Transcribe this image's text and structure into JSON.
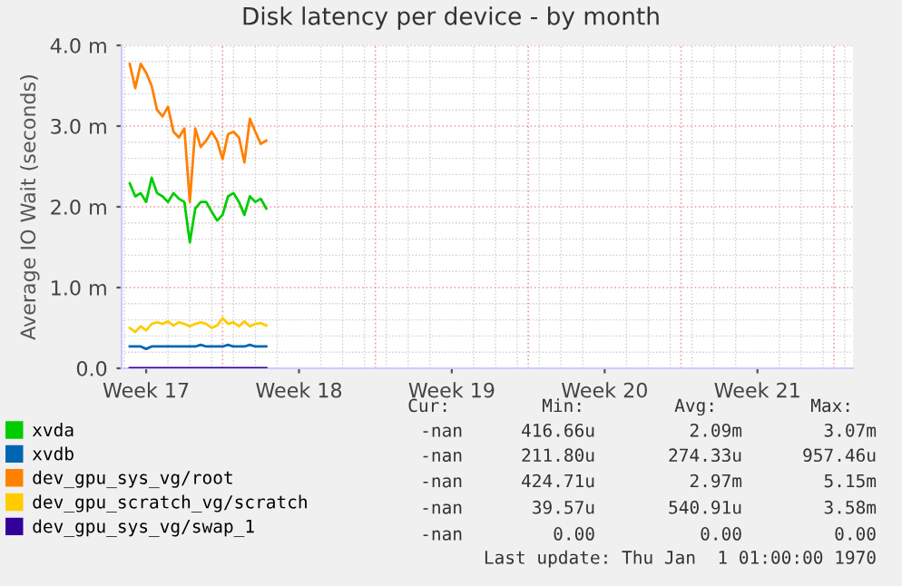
{
  "chart_data": {
    "type": "line",
    "title": "Disk latency per device - by month",
    "ylabel": "Average IO Wait (seconds)",
    "categories": [
      null,
      null,
      null,
      null,
      "Week 17",
      null,
      null,
      null,
      null,
      null,
      null,
      null,
      null,
      null,
      null,
      null,
      null,
      null,
      null,
      null,
      null,
      null,
      null,
      null,
      null,
      null,
      null,
      null,
      null,
      null,
      null,
      null,
      "Week 18",
      null,
      null,
      null,
      null,
      null,
      null,
      null,
      null,
      null,
      null,
      null,
      null,
      null,
      null,
      null,
      null,
      null,
      null,
      null,
      null,
      null,
      null,
      null,
      null,
      null,
      null,
      null,
      "Week 19",
      null,
      null,
      null,
      null,
      null,
      null,
      null,
      null,
      null,
      null,
      null,
      null,
      null,
      null,
      null,
      null,
      null,
      null,
      null,
      null,
      null,
      null,
      null,
      null,
      null,
      null,
      null,
      "Week 20",
      null,
      null,
      null,
      null,
      null,
      null,
      null,
      null,
      null,
      null,
      null,
      null,
      null,
      null,
      null,
      null,
      null,
      null,
      null,
      null,
      null,
      null,
      null,
      null,
      null,
      null,
      null,
      "Week 21",
      null,
      null,
      null,
      null,
      null,
      null,
      null,
      null,
      null,
      null,
      null,
      null,
      null,
      null,
      null,
      null,
      null
    ],
    "series": [
      {
        "name": "xvda",
        "color": "#00cc00",
        "values": [
          null,
          2.29,
          2.13,
          2.17,
          2.06,
          2.36,
          2.17,
          2.13,
          2.06,
          2.17,
          2.1,
          2.06,
          1.56,
          1.98,
          2.06,
          2.06,
          1.94,
          1.83,
          1.9,
          2.13,
          2.17,
          2.06,
          1.9,
          2.13,
          2.06,
          2.1,
          1.98,
          null,
          null,
          null,
          null,
          null,
          null,
          null,
          null,
          null,
          null,
          null,
          null,
          null,
          null,
          null,
          null,
          null,
          null,
          null,
          null,
          null,
          null,
          null,
          null,
          null,
          null,
          null,
          null,
          null,
          null,
          null,
          null,
          null,
          null,
          null,
          null,
          null,
          null,
          null,
          null,
          null,
          null,
          null,
          null,
          null,
          null,
          null,
          null,
          null,
          null,
          null,
          null,
          null,
          null,
          null,
          null,
          null,
          null,
          null,
          null,
          null,
          null,
          null,
          null,
          null,
          null,
          null,
          null,
          null,
          null,
          null,
          null,
          null,
          null,
          null,
          null,
          null,
          null,
          null,
          null,
          null,
          null,
          null,
          null,
          null,
          null,
          null,
          null,
          null,
          null,
          null,
          null,
          null,
          null,
          null,
          null,
          null,
          null,
          null,
          null,
          null,
          null,
          null,
          null,
          null,
          null,
          null
        ]
      },
      {
        "name": "xvdb",
        "color": "#0066b3",
        "values": [
          null,
          0.27,
          0.27,
          0.27,
          0.24,
          0.27,
          0.27,
          0.27,
          0.27,
          0.27,
          0.27,
          0.27,
          0.27,
          0.27,
          0.29,
          0.27,
          0.27,
          0.27,
          0.27,
          0.29,
          0.27,
          0.27,
          0.27,
          0.29,
          0.27,
          0.27,
          0.27,
          null,
          null,
          null,
          null,
          null,
          null,
          null,
          null,
          null,
          null,
          null,
          null,
          null,
          null,
          null,
          null,
          null,
          null,
          null,
          null,
          null,
          null,
          null,
          null,
          null,
          null,
          null,
          null,
          null,
          null,
          null,
          null,
          null,
          null,
          null,
          null,
          null,
          null,
          null,
          null,
          null,
          null,
          null,
          null,
          null,
          null,
          null,
          null,
          null,
          null,
          null,
          null,
          null,
          null,
          null,
          null,
          null,
          null,
          null,
          null,
          null,
          null,
          null,
          null,
          null,
          null,
          null,
          null,
          null,
          null,
          null,
          null,
          null,
          null,
          null,
          null,
          null,
          null,
          null,
          null,
          null,
          null,
          null,
          null,
          null,
          null,
          null,
          null,
          null,
          null,
          null,
          null,
          null,
          null,
          null,
          null,
          null,
          null,
          null,
          null,
          null,
          null,
          null,
          null,
          null,
          null,
          null
        ]
      },
      {
        "name": "dev_gpu_sys_vg/root",
        "color": "#ff8000",
        "values": [
          null,
          3.77,
          3.47,
          3.77,
          3.66,
          3.5,
          3.2,
          3.12,
          3.24,
          2.93,
          2.86,
          2.97,
          2.06,
          2.97,
          2.74,
          2.82,
          2.93,
          2.82,
          2.59,
          2.9,
          2.93,
          2.86,
          2.55,
          3.09,
          2.93,
          2.78,
          2.82,
          null,
          null,
          null,
          null,
          null,
          null,
          null,
          null,
          null,
          null,
          null,
          null,
          null,
          null,
          null,
          null,
          null,
          null,
          null,
          null,
          null,
          null,
          null,
          null,
          null,
          null,
          null,
          null,
          null,
          null,
          null,
          null,
          null,
          null,
          null,
          null,
          null,
          null,
          null,
          null,
          null,
          null,
          null,
          null,
          null,
          null,
          null,
          null,
          null,
          null,
          null,
          null,
          null,
          null,
          null,
          null,
          null,
          null,
          null,
          null,
          null,
          null,
          null,
          null,
          null,
          null,
          null,
          null,
          null,
          null,
          null,
          null,
          null,
          null,
          null,
          null,
          null,
          null,
          null,
          null,
          null,
          null,
          null,
          null,
          null,
          null,
          null,
          null,
          null,
          null,
          null,
          null,
          null,
          null,
          null,
          null,
          null,
          null,
          null,
          null,
          null,
          null,
          null,
          null,
          null,
          null,
          null
        ]
      },
      {
        "name": "dev_gpu_scratch_vg/scratch",
        "color": "#ffcc00",
        "values": [
          null,
          0.5,
          0.45,
          0.52,
          0.47,
          0.55,
          0.57,
          0.55,
          0.58,
          0.53,
          0.57,
          0.55,
          0.52,
          0.55,
          0.57,
          0.55,
          0.5,
          0.53,
          0.62,
          0.55,
          0.57,
          0.52,
          0.58,
          0.52,
          0.55,
          0.56,
          0.53,
          null,
          null,
          null,
          null,
          null,
          null,
          null,
          null,
          null,
          null,
          null,
          null,
          null,
          null,
          null,
          null,
          null,
          null,
          null,
          null,
          null,
          null,
          null,
          null,
          null,
          null,
          null,
          null,
          null,
          null,
          null,
          null,
          null,
          null,
          null,
          null,
          null,
          null,
          null,
          null,
          null,
          null,
          null,
          null,
          null,
          null,
          null,
          null,
          null,
          null,
          null,
          null,
          null,
          null,
          null,
          null,
          null,
          null,
          null,
          null,
          null,
          null,
          null,
          null,
          null,
          null,
          null,
          null,
          null,
          null,
          null,
          null,
          null,
          null,
          null,
          null,
          null,
          null,
          null,
          null,
          null,
          null,
          null,
          null,
          null,
          null,
          null,
          null,
          null,
          null,
          null,
          null,
          null,
          null,
          null,
          null,
          null,
          null,
          null,
          null,
          null,
          null,
          null,
          null,
          null,
          null,
          null
        ]
      },
      {
        "name": "dev_gpu_sys_vg/swap_1",
        "color": "#330099",
        "values": [
          null,
          0,
          0,
          0,
          0,
          0,
          0,
          0,
          0,
          0,
          0,
          0,
          0,
          0,
          0,
          0,
          0,
          0,
          0,
          0,
          0,
          0,
          0,
          0,
          0,
          0,
          0,
          null,
          null,
          null,
          null,
          null,
          null,
          null,
          null,
          null,
          null,
          null,
          null,
          null,
          null,
          null,
          null,
          null,
          null,
          null,
          null,
          null,
          null,
          null,
          null,
          null,
          null,
          null,
          null,
          null,
          null,
          null,
          null,
          null,
          null,
          null,
          null,
          null,
          null,
          null,
          null,
          null,
          null,
          null,
          null,
          null,
          null,
          null,
          null,
          null,
          null,
          null,
          null,
          null,
          null,
          null,
          null,
          null,
          null,
          null,
          null,
          null,
          null,
          null,
          null,
          null,
          null,
          null,
          null,
          null,
          null,
          null,
          null,
          null,
          null,
          null,
          null,
          null,
          null,
          null,
          null,
          null,
          null,
          null,
          null,
          null,
          null,
          null,
          null,
          null,
          null,
          null,
          null,
          null,
          null,
          null,
          null,
          null,
          null,
          null,
          null,
          null,
          null,
          null,
          null,
          null,
          null,
          null
        ]
      }
    ],
    "ylim": [
      0,
      4.0
    ],
    "yticks": [
      {
        "value": 0,
        "label": "0.0"
      },
      {
        "value": 1,
        "label": "1.0 m"
      },
      {
        "value": 2,
        "label": "2.0 m"
      },
      {
        "value": 3,
        "label": "3.0 m"
      },
      {
        "value": 4,
        "label": "4.0 m"
      }
    ],
    "grid": true,
    "legend": "bottom",
    "marker": "none",
    "line_style": "solid",
    "annotations": [
      "Cur:",
      "Min:",
      "Avg:",
      "Max:",
      "-nan",
      "416.66u",
      "2.09m",
      "3.07m",
      "-nan",
      "211.80u",
      "274.33u",
      "957.46u",
      "-nan",
      "424.71u",
      "2.97m",
      "5.15m",
      "-nan",
      "39.57u",
      "540.91u",
      "3.58m",
      "-nan",
      "0.00",
      "0.00",
      "0.00",
      "Last update: Thu Jan  1 01:00:00 1970"
    ]
  }
}
